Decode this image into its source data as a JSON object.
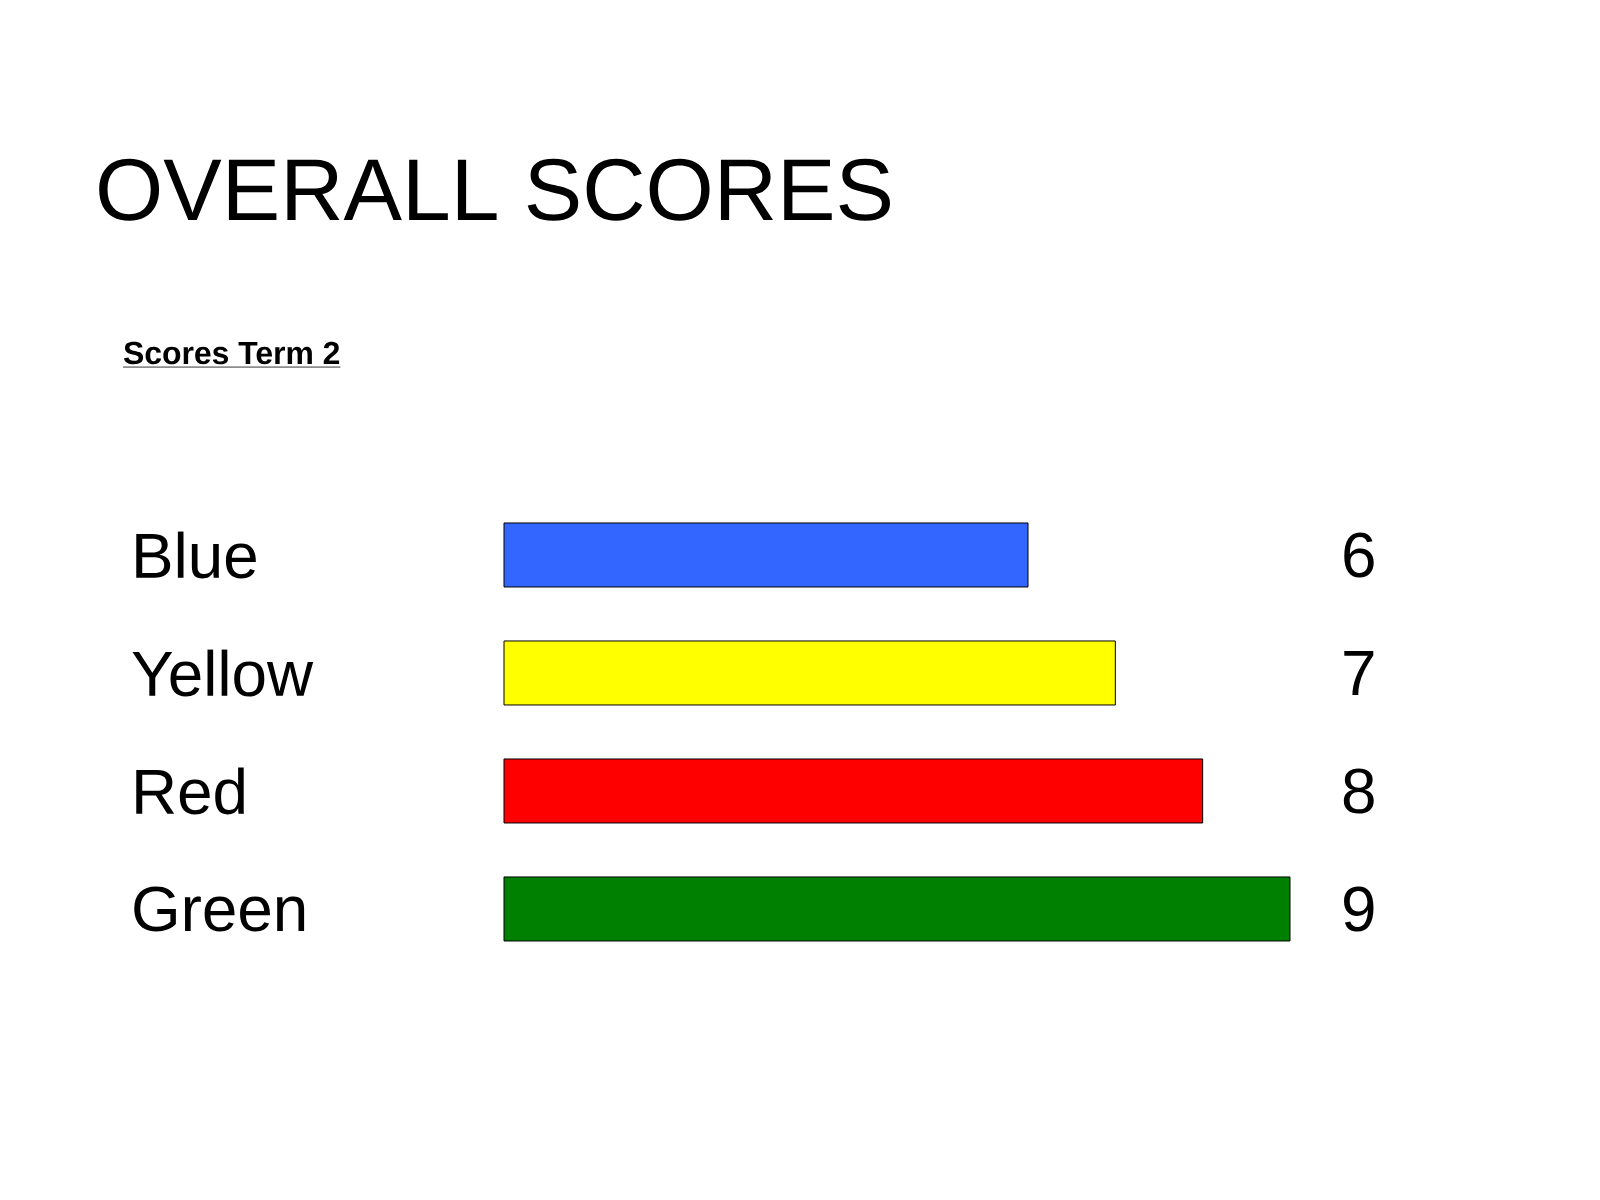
{
  "chart_data": {
    "type": "bar",
    "orientation": "horizontal",
    "title": "OVERALL SCORES",
    "subtitle": "Scores Term 2",
    "categories": [
      "Blue",
      "Yellow",
      "Red",
      "Green"
    ],
    "values": [
      6,
      7,
      8,
      9
    ],
    "colors": [
      "#3366ff",
      "#ffff00",
      "#ff0000",
      "#008000"
    ],
    "data_labels": true
  }
}
